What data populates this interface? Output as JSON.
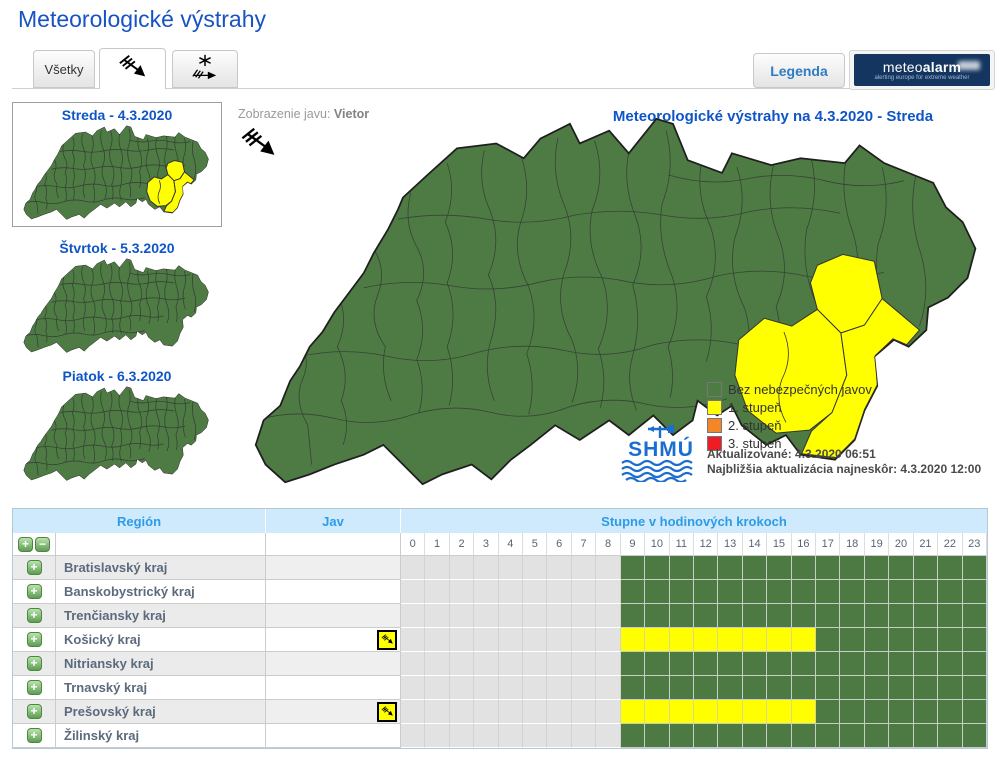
{
  "page": {
    "title": "Meteorologické výstrahy"
  },
  "tabs": [
    {
      "label": "Všetky"
    },
    {
      "icon": "wind-icon"
    },
    {
      "icon": "snow-wind-icon"
    }
  ],
  "legend_button": "Legenda",
  "meteoalarm": {
    "brand_light": "meteo",
    "brand_bold": "alarm",
    "tagline": "alerting europe for extreme weather"
  },
  "sidebar": {
    "days": [
      {
        "label": "Streda - 4.3.2020",
        "selected": true,
        "has_warning": true
      },
      {
        "label": "Štvrtok - 5.3.2020",
        "selected": false,
        "has_warning": false
      },
      {
        "label": "Piatok - 6.3.2020",
        "selected": false,
        "has_warning": false
      }
    ]
  },
  "map": {
    "phenomenon_label": "Zobrazenie javu:",
    "phenomenon_value": "Vietor",
    "title": "Meteorologické výstrahy na 4.3.2020 - Streda",
    "legend": [
      {
        "label": "Bez nebezpečných javov",
        "color": "#4e7b44"
      },
      {
        "label": "1. stupeň",
        "color": "#ffff00"
      },
      {
        "label": "2. stupeň",
        "color": "#f4862a"
      },
      {
        "label": "3. stupeň",
        "color": "#ee1c25"
      }
    ],
    "updated": "Aktualizované: 4.3.2020 06:51",
    "next_update": "Najbližšia aktualizácia najneskôr: 4.3.2020 12:00",
    "logo_text": "SHMÚ"
  },
  "table": {
    "headers": {
      "region": "Región",
      "phenomenon": "Jav",
      "hours": "Stupne v hodinových krokoch"
    },
    "hour_labels": [
      "0",
      "1",
      "2",
      "3",
      "4",
      "5",
      "6",
      "7",
      "8",
      "9",
      "10",
      "11",
      "12",
      "13",
      "14",
      "15",
      "16",
      "17",
      "18",
      "19",
      "20",
      "21",
      "22",
      "23"
    ],
    "past_hours": 9,
    "rows": [
      {
        "region": "Bratislavský kraj",
        "warning": null
      },
      {
        "region": "Banskobystrický kraj",
        "warning": null
      },
      {
        "region": "Trenčiansky kraj",
        "warning": null
      },
      {
        "region": "Košický kraj",
        "warning": {
          "level": 1,
          "from": 9,
          "to": 16,
          "icon": "wind-icon"
        }
      },
      {
        "region": "Nitriansky kraj",
        "warning": null
      },
      {
        "region": "Trnavský kraj",
        "warning": null
      },
      {
        "region": "Prešovský kraj",
        "warning": {
          "level": 1,
          "from": 9,
          "to": 16,
          "icon": "wind-icon"
        }
      },
      {
        "region": "Žilinský kraj",
        "warning": null
      }
    ]
  },
  "colors": {
    "ok_green": "#4d7a42",
    "warn_yellow": "#ffff00",
    "past_gray": "#e2e2e2"
  }
}
